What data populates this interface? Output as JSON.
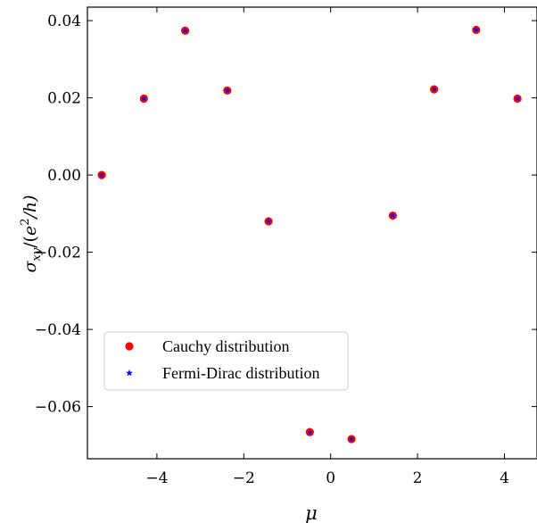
{
  "chart_data": {
    "type": "scatter",
    "xlabel": "μ",
    "ylabel_parts": {
      "sigma": "σ",
      "sub": "xy",
      "open": "/(",
      "e": "e",
      "sup": "2",
      "close": "/h)"
    },
    "xlim": [
      -5.6,
      4.75
    ],
    "ylim": [
      -0.0735,
      0.0435
    ],
    "x_ticks": [
      -4,
      -2,
      0,
      2,
      4
    ],
    "x_tick_labels": [
      "−4",
      "−2",
      "0",
      "2",
      "4"
    ],
    "y_ticks": [
      -0.06,
      -0.04,
      -0.02,
      0.0,
      0.02,
      0.04
    ],
    "y_tick_labels": [
      "−0.06",
      "−0.04",
      "−0.02",
      "0.00",
      "0.02",
      "0.04"
    ],
    "legend_position": "lower-left",
    "series": [
      {
        "name": "Cauchy distribution",
        "marker": "circle",
        "color": "#ff0000",
        "x": [
          -5.27,
          -4.3,
          -3.35,
          -2.38,
          -1.43,
          -0.48,
          0.48,
          1.43,
          2.38,
          3.35,
          4.3
        ],
        "y": [
          0.0,
          0.0198,
          0.0374,
          0.0219,
          -0.012,
          -0.0666,
          -0.0684,
          -0.0105,
          0.0222,
          0.0376,
          0.0198
        ]
      },
      {
        "name": "Fermi-Dirac distribution",
        "marker": "star",
        "color": "#0000ff",
        "x": [
          -5.27,
          -4.3,
          -3.35,
          -2.38,
          -1.43,
          -0.48,
          0.48,
          1.43,
          2.38,
          3.35,
          4.3
        ],
        "y": [
          0.0,
          0.0198,
          0.0374,
          0.0219,
          -0.012,
          -0.0666,
          -0.0684,
          -0.0105,
          0.0222,
          0.0376,
          0.0198
        ]
      }
    ]
  }
}
